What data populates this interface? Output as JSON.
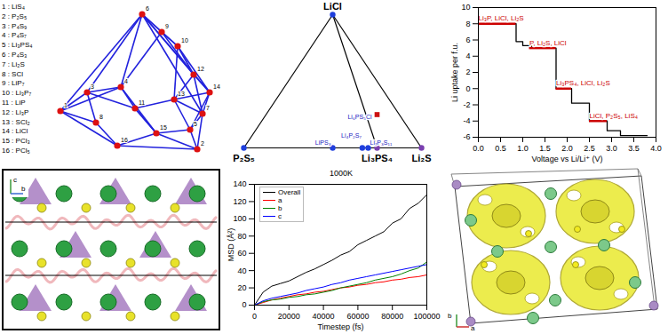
{
  "chart_data": [
    {
      "type": "line",
      "x_label": "Voltage vs Li/Li⁺ (V)",
      "y_label": "Li uptake per f.u.",
      "xlim": [
        0,
        4
      ],
      "xticks": [
        {
          "value": 0,
          "label": "0.0"
        },
        {
          "value": 0.5,
          "label": "0.5"
        },
        {
          "value": 1,
          "label": "1.0"
        },
        {
          "value": 1.5,
          "label": "1.5"
        },
        {
          "value": 2,
          "label": "2.0"
        },
        {
          "value": 2.5,
          "label": "2.5"
        },
        {
          "value": 3,
          "label": "3.0"
        },
        {
          "value": 3.5,
          "label": "3.5"
        },
        {
          "value": 4,
          "label": "4.0"
        }
      ],
      "ylim": [
        -6,
        10
      ],
      "yticks": [
        -6,
        -4,
        -2,
        0,
        2,
        4,
        6,
        8,
        10
      ],
      "series": [
        {
          "color": "#000000",
          "line_style": "step",
          "x": [
            0,
            0.85,
            1.0,
            1.2,
            1.75,
            2.1,
            2.5,
            2.9,
            3.2,
            3.8
          ],
          "values": [
            8,
            5.8,
            5.3,
            5,
            0,
            -1.8,
            -4,
            -5.2,
            -5.8,
            -5.8
          ]
        },
        {
          "color": "#cc0000",
          "segments": [
            {
              "x": [
                0,
                0.85
              ],
              "value": 8,
              "label": "Li₃P, LiCl, Li₂S"
            },
            {
              "x": [
                1.15,
                1.75
              ],
              "value": 5,
              "label": "P, Li₂S, LiCl"
            },
            {
              "x": [
                1.75,
                2.1
              ],
              "value": 0,
              "label": "Li₃PS₄, LiCl, Li₂S"
            },
            {
              "x": [
                2.5,
                2.9
              ],
              "value": -4,
              "label": "LiCl, P₂S₅, LiS₄"
            }
          ]
        }
      ]
    },
    {
      "type": "line",
      "title": "1000K",
      "x_label": "Timestep (fs)",
      "y_label": "MSD (Å²)",
      "xlim": [
        0,
        100000
      ],
      "xticks": [
        0,
        20000,
        40000,
        60000,
        80000,
        100000
      ],
      "ylim": [
        0,
        140
      ],
      "yticks": [
        0,
        20,
        40,
        60,
        80,
        100,
        120,
        140
      ],
      "legend": "top-left",
      "x": [
        0,
        5000,
        10000,
        15000,
        20000,
        25000,
        30000,
        35000,
        40000,
        45000,
        50000,
        55000,
        60000,
        65000,
        70000,
        75000,
        80000,
        85000,
        90000,
        95000,
        100000
      ],
      "series": [
        {
          "name": "Overall",
          "color": "#000000",
          "values": [
            0,
            15,
            22,
            25,
            28,
            33,
            38,
            42,
            47,
            52,
            58,
            62,
            70,
            75,
            80,
            85,
            95,
            100,
            112,
            118,
            128
          ]
        },
        {
          "name": "a",
          "color": "#ff0000",
          "values": [
            0,
            3,
            6,
            8,
            10,
            12,
            13,
            15,
            16,
            18,
            20,
            21,
            23,
            24,
            26,
            27,
            29,
            30,
            32,
            33,
            35
          ]
        },
        {
          "name": "b",
          "color": "#008000",
          "values": [
            0,
            4,
            6,
            7,
            9,
            10,
            12,
            13,
            15,
            17,
            20,
            22,
            24,
            26,
            29,
            31,
            33,
            36,
            40,
            43,
            50
          ]
        },
        {
          "name": "c",
          "color": "#0000ff",
          "values": [
            0,
            5,
            8,
            10,
            12,
            14,
            17,
            19,
            21,
            24,
            26,
            29,
            31,
            33,
            35,
            37,
            39,
            41,
            43,
            45,
            47
          ]
        }
      ]
    }
  ],
  "diagrams": {
    "network": {
      "nodes": [
        {
          "id": 1,
          "entry": "1 : LiS₄"
        },
        {
          "id": 2,
          "entry": "2 : P₂S₅"
        },
        {
          "id": 3,
          "entry": "3 : P₄S₉"
        },
        {
          "id": 4,
          "entry": "4 : P₄S₇"
        },
        {
          "id": 5,
          "entry": "5 : Li₃PS₄"
        },
        {
          "id": 6,
          "entry": "6 : P₄S₃"
        },
        {
          "id": 7,
          "entry": "7 : Li₂S"
        },
        {
          "id": 8,
          "entry": "8 : SCl"
        },
        {
          "id": 9,
          "entry": "9 : LiP₇"
        },
        {
          "id": 10,
          "entry": "10 : Li₃P₇"
        },
        {
          "id": 11,
          "entry": "11 : LiP"
        },
        {
          "id": 12,
          "entry": "12 : Li₃P"
        },
        {
          "id": 13,
          "entry": "13 : SCl₂"
        },
        {
          "id": 14,
          "entry": "14 : LiCl"
        },
        {
          "id": 15,
          "entry": "15 : PCl₃"
        },
        {
          "id": 16,
          "entry": "16 : PCl₅"
        }
      ],
      "edges": [
        [
          1,
          3
        ],
        [
          1,
          8
        ],
        [
          1,
          6
        ],
        [
          1,
          16
        ],
        [
          1,
          4
        ],
        [
          3,
          4
        ],
        [
          3,
          6
        ],
        [
          3,
          8
        ],
        [
          3,
          11
        ],
        [
          4,
          6
        ],
        [
          4,
          11
        ],
        [
          4,
          9
        ],
        [
          6,
          9
        ],
        [
          6,
          10
        ],
        [
          6,
          12
        ],
        [
          6,
          14
        ],
        [
          6,
          7
        ],
        [
          9,
          10
        ],
        [
          9,
          12
        ],
        [
          10,
          12
        ],
        [
          10,
          14
        ],
        [
          10,
          13
        ],
        [
          12,
          14
        ],
        [
          12,
          7
        ],
        [
          12,
          13
        ],
        [
          13,
          14
        ],
        [
          13,
          7
        ],
        [
          13,
          5
        ],
        [
          14,
          7
        ],
        [
          14,
          5
        ],
        [
          7,
          5
        ],
        [
          5,
          2
        ],
        [
          7,
          2
        ],
        [
          15,
          2
        ],
        [
          15,
          5
        ],
        [
          15,
          11
        ],
        [
          16,
          15
        ],
        [
          16,
          2
        ],
        [
          11,
          13
        ],
        [
          8,
          16
        ],
        [
          11,
          15
        ],
        [
          4,
          15
        ]
      ]
    },
    "ternary": {
      "components": [
        "LiCl",
        "P₂S₅",
        "Li₂S"
      ],
      "points": [
        {
          "label": "LiCl",
          "fractions": [
            1,
            0,
            0
          ],
          "color": "#1f3fdd",
          "marker": "circle",
          "bold": true
        },
        {
          "label": "P₂S₅",
          "fractions": [
            0,
            1,
            0
          ],
          "color": "#1f3fdd",
          "marker": "circle",
          "bold": true
        },
        {
          "label": "Li₂S",
          "fractions": [
            0,
            0,
            1
          ],
          "color": "#7a3fb0",
          "marker": "circle",
          "bold": true
        },
        {
          "label": "Li₃PS₄",
          "fractions": [
            0,
            0.25,
            0.75
          ],
          "color": "#7a3fb0",
          "marker": "circle",
          "bold": true
        },
        {
          "label": "LiPS₃",
          "fractions": [
            0,
            0.5,
            0.5
          ],
          "color": "#1f3fdd",
          "marker": "circle",
          "bold": false
        },
        {
          "label": "Li₄P₂S₇",
          "fractions": [
            0,
            0.333,
            0.667
          ],
          "color": "#1f3fdd",
          "marker": "circle",
          "bold": false
        },
        {
          "label": "Li₇P₃S₁₁",
          "fractions": [
            0,
            0.3,
            0.7
          ],
          "color": "#1f3fdd",
          "marker": "circle",
          "bold": false
        },
        {
          "label": "Li₆PS₅Cl",
          "fractions": [
            0.25,
            0.125,
            0.625
          ],
          "color": "#cc1111",
          "marker": "square",
          "bold": false
        }
      ],
      "tie_lines": [
        [
          "LiCl",
          "P₂S₅"
        ],
        [
          "LiCl",
          "Li₂S"
        ],
        [
          "P₂S₅",
          "Li₂S"
        ],
        [
          "LiCl",
          "Li₃PS₄"
        ]
      ]
    },
    "structures": [
      {
        "axes": [
          "c",
          "b"
        ]
      },
      {
        "axes": [
          "b",
          "a"
        ]
      }
    ]
  }
}
